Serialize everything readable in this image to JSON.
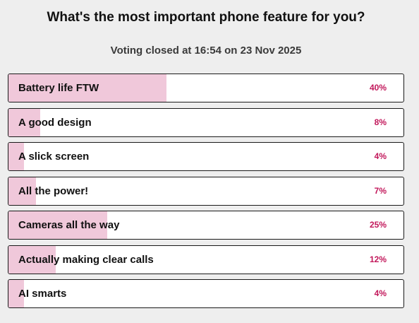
{
  "poll": {
    "question": "What's the most important phone feature for you?",
    "status": "Voting closed at 16:54 on 23 Nov 2025",
    "accent_color": "#c2185b",
    "fill_color": "#f0c8da",
    "options": [
      {
        "label": "Battery life FTW",
        "percent_label": "40%",
        "percent": 40
      },
      {
        "label": "A good design",
        "percent_label": "8%",
        "percent": 8
      },
      {
        "label": "A slick screen",
        "percent_label": "4%",
        "percent": 4
      },
      {
        "label": "All the power!",
        "percent_label": "7%",
        "percent": 7
      },
      {
        "label": "Cameras all the way",
        "percent_label": "25%",
        "percent": 25
      },
      {
        "label": "Actually making clear calls",
        "percent_label": "12%",
        "percent": 12
      },
      {
        "label": "AI smarts",
        "percent_label": "4%",
        "percent": 4
      }
    ]
  }
}
